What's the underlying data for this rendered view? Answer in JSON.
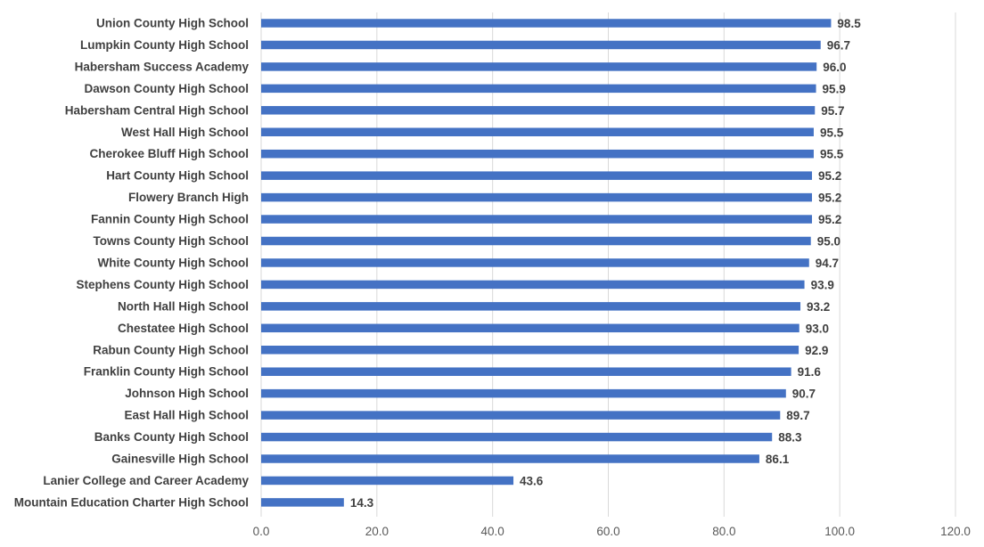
{
  "chart_data": {
    "type": "bar",
    "orientation": "horizontal",
    "title": "",
    "xlabel": "",
    "ylabel": "",
    "xlim": [
      0,
      120
    ],
    "x_ticks": [
      "0.0",
      "20.0",
      "40.0",
      "60.0",
      "80.0",
      "100.0",
      "120.0"
    ],
    "grid": "vertical",
    "legend": "none",
    "bar_color": "#4472C4",
    "categories": [
      "Union County High School",
      "Lumpkin County High School",
      "Habersham Success Academy",
      "Dawson County High School",
      "Habersham Central High School",
      "West Hall High School",
      "Cherokee Bluff High School",
      "Hart County High School",
      "Flowery Branch High",
      "Fannin County High School",
      "Towns County High School",
      "White County High School",
      "Stephens County High School",
      "North Hall High School",
      "Chestatee High School",
      "Rabun County High School",
      "Franklin County High School",
      "Johnson High School",
      "East Hall High School",
      "Banks County High School",
      "Gainesville High School",
      "Lanier College and Career Academy",
      "Mountain Education Charter High School"
    ],
    "values": [
      98.5,
      96.7,
      96.0,
      95.9,
      95.7,
      95.5,
      95.5,
      95.2,
      95.2,
      95.2,
      95.0,
      94.7,
      93.9,
      93.2,
      93.0,
      92.9,
      91.6,
      90.7,
      89.7,
      88.3,
      86.1,
      43.6,
      14.3
    ],
    "value_labels": [
      "98.5",
      "96.7",
      "96.0",
      "95.9",
      "95.7",
      "95.5",
      "95.5",
      "95.2",
      "95.2",
      "95.2",
      "95.0",
      "94.7",
      "93.9",
      "93.2",
      "93.0",
      "92.9",
      "91.6",
      "90.7",
      "89.7",
      "88.3",
      "86.1",
      "43.6",
      "14.3"
    ]
  }
}
